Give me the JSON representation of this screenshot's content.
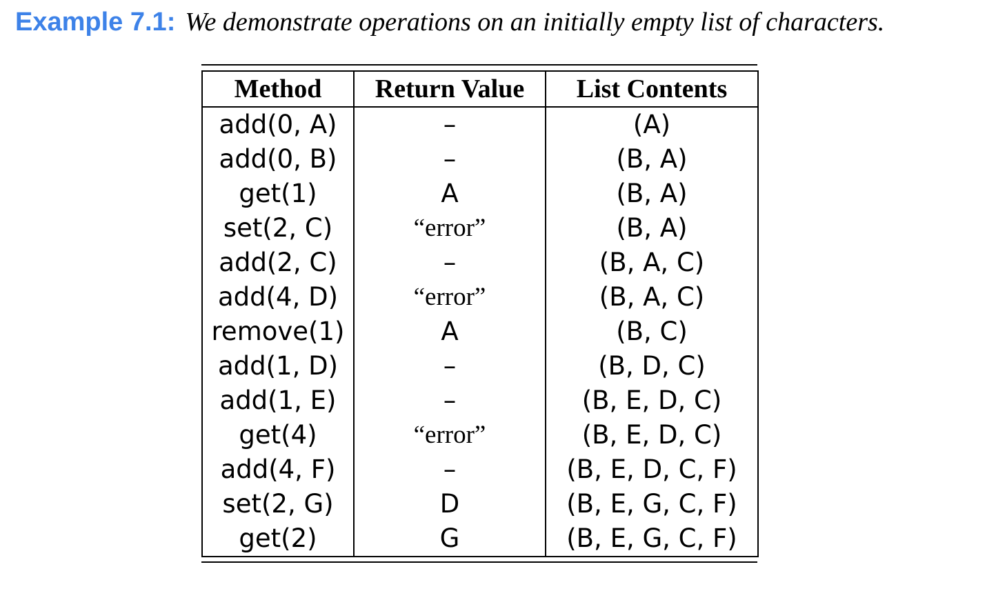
{
  "example": {
    "label": "Example 7.1:",
    "text": "We demonstrate operations on an initially empty list of characters."
  },
  "table": {
    "headers": [
      "Method",
      "Return Value",
      "List Contents"
    ],
    "rows": [
      [
        "add(0, A)",
        "–",
        "(A)"
      ],
      [
        "add(0, B)",
        "–",
        "(B, A)"
      ],
      [
        "get(1)",
        "A",
        "(B, A)"
      ],
      [
        "set(2, C)",
        "“error”",
        "(B, A)"
      ],
      [
        "add(2, C)",
        "–",
        "(B, A, C)"
      ],
      [
        "add(4, D)",
        "“error”",
        "(B, A, C)"
      ],
      [
        "remove(1)",
        "A",
        "(B, C)"
      ],
      [
        "add(1, D)",
        "–",
        "(B, D, C)"
      ],
      [
        "add(1, E)",
        "–",
        "(B, E, D, C)"
      ],
      [
        "get(4)",
        "“error”",
        "(B, E, D, C)"
      ],
      [
        "add(4, F)",
        "–",
        "(B, E, D, C, F)"
      ],
      [
        "set(2, G)",
        "D",
        "(B, E, G, C, F)"
      ],
      [
        "get(2)",
        "G",
        "(B, E, G, C, F)"
      ]
    ]
  },
  "colors": {
    "label": "#3d82e8",
    "text": "#000000"
  }
}
